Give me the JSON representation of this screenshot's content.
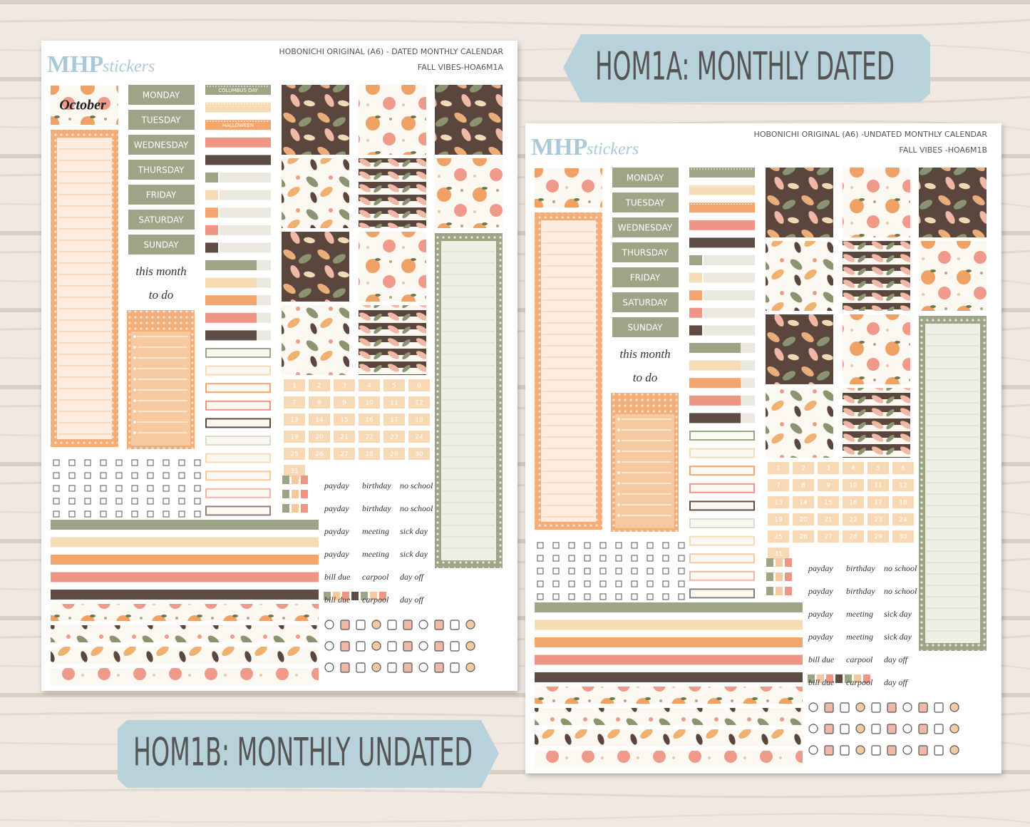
{
  "banners": {
    "dated": "HOM1A: MONTHLY DATED",
    "undated": "HOM1B: MONTHLY UNDATED"
  },
  "sheets": [
    {
      "brand": "MHP",
      "brand_script": "stickers",
      "title": "HOBONICHI ORIGINAL (A6) - DATED MONTHLY CALENDAR",
      "subtitle": "FALL VIBES-HOA6M1A",
      "month": "October",
      "weekdays": [
        "MONDAY",
        "TUESDAY",
        "WEDNESDAY",
        "THURSDAY",
        "FRIDAY",
        "SATURDAY",
        "SUNDAY"
      ],
      "this_month": "this month",
      "to_do": "to do",
      "holidays": [
        "COLUMBUS DAY",
        "HALLOWEEN"
      ],
      "dates": [
        "1",
        "2",
        "3",
        "4",
        "5",
        "6",
        "7",
        "8",
        "9",
        "10",
        "11",
        "12",
        "13",
        "14",
        "15",
        "16",
        "17",
        "18",
        "19",
        "20",
        "21",
        "22",
        "23",
        "24",
        "25",
        "26",
        "27",
        "28",
        "29",
        "30",
        "31"
      ],
      "labels": [
        [
          "payday",
          "birthday",
          "no school"
        ],
        [
          "payday",
          "birthday",
          "no school"
        ],
        [
          "payday",
          "meeting",
          "sick day"
        ],
        [
          "payday",
          "meeting",
          "sick day"
        ],
        [
          "bill due",
          "carpool",
          "day off"
        ],
        [
          "bill due",
          "carpool",
          "day off"
        ]
      ]
    },
    {
      "brand": "MHP",
      "brand_script": "stickers",
      "title": "HOBONICHI ORIGINAL (A6) -UNDATED MONTHLY CALENDAR",
      "subtitle": "FALL VIBES -HOA6M1B",
      "weekdays": [
        "MONDAY",
        "TUESDAY",
        "WEDNESDAY",
        "THURSDAY",
        "FRIDAY",
        "SATURDAY",
        "SUNDAY"
      ],
      "this_month": "this month",
      "to_do": "to do",
      "dates": [
        "1",
        "2",
        "3",
        "4",
        "5",
        "6",
        "7",
        "8",
        "9",
        "10",
        "11",
        "12",
        "13",
        "14",
        "15",
        "16",
        "17",
        "18",
        "19",
        "20",
        "21",
        "22",
        "23",
        "24",
        "25",
        "26",
        "27",
        "28",
        "29",
        "30",
        "31"
      ],
      "labels": [
        [
          "payday",
          "birthday",
          "no school"
        ],
        [
          "payday",
          "birthday",
          "no school"
        ],
        [
          "payday",
          "meeting",
          "sick day"
        ],
        [
          "payday",
          "meeting",
          "sick day"
        ],
        [
          "bill due",
          "carpool",
          "day off"
        ],
        [
          "bill due",
          "carpool",
          "day off"
        ]
      ]
    }
  ]
}
